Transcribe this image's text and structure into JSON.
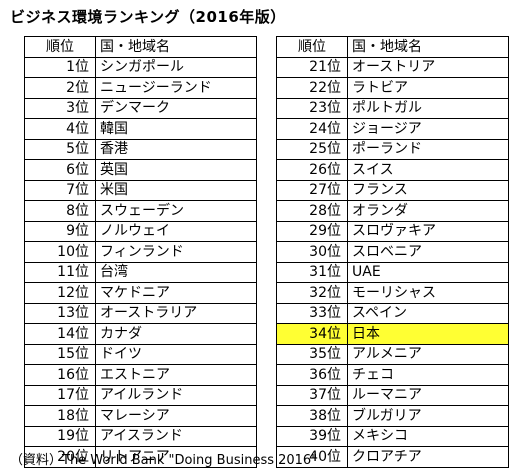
{
  "title": "ビジネス環境ランキング（2016年版）",
  "headers": {
    "rank": "順位",
    "country": "国・地域名"
  },
  "highlight_color": "#ffff33",
  "left_table": [
    {
      "rank": "1位",
      "country": "シンガポール"
    },
    {
      "rank": "2位",
      "country": "ニュージーランド"
    },
    {
      "rank": "3位",
      "country": "デンマーク"
    },
    {
      "rank": "4位",
      "country": "韓国"
    },
    {
      "rank": "5位",
      "country": "香港"
    },
    {
      "rank": "6位",
      "country": "英国"
    },
    {
      "rank": "7位",
      "country": "米国"
    },
    {
      "rank": "8位",
      "country": "スウェーデン"
    },
    {
      "rank": "9位",
      "country": "ノルウェイ"
    },
    {
      "rank": "10位",
      "country": "フィンランド"
    },
    {
      "rank": "11位",
      "country": "台湾"
    },
    {
      "rank": "12位",
      "country": "マケドニア"
    },
    {
      "rank": "13位",
      "country": "オーストラリア"
    },
    {
      "rank": "14位",
      "country": "カナダ"
    },
    {
      "rank": "15位",
      "country": "ドイツ"
    },
    {
      "rank": "16位",
      "country": "エストニア"
    },
    {
      "rank": "17位",
      "country": "アイルランド"
    },
    {
      "rank": "18位",
      "country": "マレーシア"
    },
    {
      "rank": "19位",
      "country": "アイスランド"
    },
    {
      "rank": "20位",
      "country": "リトアニア"
    }
  ],
  "right_table": [
    {
      "rank": "21位",
      "country": "オーストリア"
    },
    {
      "rank": "22位",
      "country": "ラトビア"
    },
    {
      "rank": "23位",
      "country": "ポルトガル"
    },
    {
      "rank": "24位",
      "country": "ジョージア"
    },
    {
      "rank": "25位",
      "country": "ポーランド"
    },
    {
      "rank": "26位",
      "country": "スイス"
    },
    {
      "rank": "27位",
      "country": "フランス"
    },
    {
      "rank": "28位",
      "country": "オランダ"
    },
    {
      "rank": "29位",
      "country": "スロヴァキア"
    },
    {
      "rank": "30位",
      "country": "スロベニア"
    },
    {
      "rank": "31位",
      "country": "UAE"
    },
    {
      "rank": "32位",
      "country": "モーリシャス"
    },
    {
      "rank": "33位",
      "country": "スペイン"
    },
    {
      "rank": "34位",
      "country": "日本",
      "highlighted": true
    },
    {
      "rank": "35位",
      "country": "アルメニア"
    },
    {
      "rank": "36位",
      "country": "チェコ"
    },
    {
      "rank": "37位",
      "country": "ルーマニア"
    },
    {
      "rank": "38位",
      "country": "ブルガリア"
    },
    {
      "rank": "39位",
      "country": "メキシコ"
    },
    {
      "rank": "40位",
      "country": "クロアチア"
    }
  ],
  "source": "（資料）The World Bank \"Doing Business 2016\""
}
